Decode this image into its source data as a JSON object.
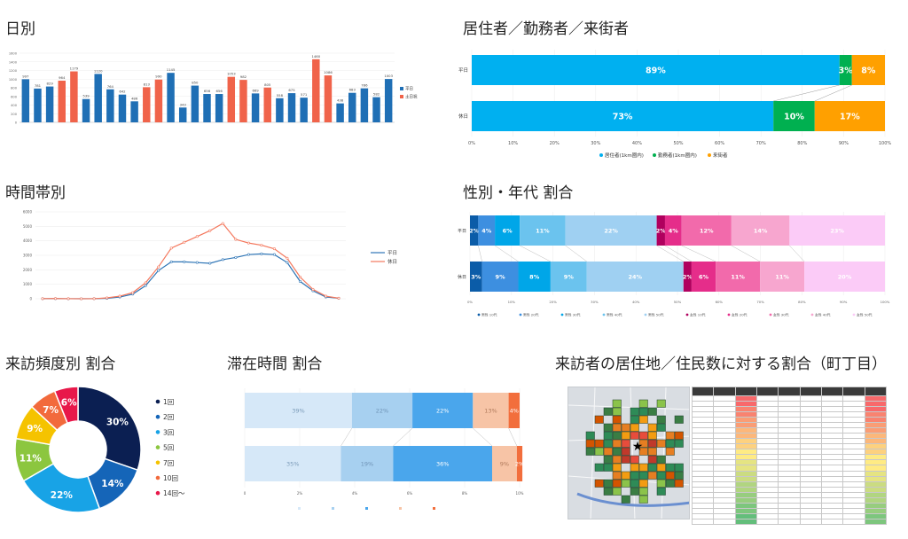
{
  "titles": {
    "daily": "日別",
    "resident": "居住者／勤務者／来街者",
    "hourly": "時間帯別",
    "gender_age": "性別・年代 割合",
    "frequency": "来訪頻度別 割合",
    "stay": "滞在時間 割合",
    "residence": "来訪者の居住地／住民数に対する割合（町丁目）"
  },
  "colors": {
    "weekday": "#1f6fb5",
    "holiday": "#f0634a",
    "resident": "#00b0f0",
    "worker": "#00b050",
    "visitor": "#ffa000",
    "hourly_weekday": "#2e75b6",
    "hourly_holiday": "#f4775c"
  },
  "chart_data": [
    {
      "id": "daily",
      "type": "bar",
      "ylim": [
        0,
        1600
      ],
      "y_ticks": [
        "0",
        "200",
        "400",
        "600",
        "800",
        "1000",
        "1200",
        "1400",
        "1600"
      ],
      "series_names": [
        "平日",
        "土日祝"
      ],
      "values": [
        997,
        781,
        829,
        964,
        1179,
        539,
        1120,
        764,
        642,
        486,
        813,
        990,
        1145,
        343,
        850,
        656,
        656,
        1053,
        982,
        669,
        805,
        558,
        675,
        571,
        1460,
        1086,
        438,
        683,
        786,
        582,
        1003
      ],
      "holiday": [
        false,
        false,
        false,
        true,
        true,
        false,
        false,
        false,
        false,
        false,
        true,
        true,
        false,
        false,
        false,
        false,
        false,
        true,
        true,
        false,
        true,
        false,
        false,
        false,
        true,
        true,
        false,
        false,
        false,
        false,
        false
      ]
    },
    {
      "id": "resident",
      "type": "bar",
      "orientation": "horizontal-stacked",
      "categories": [
        "平日",
        "休日"
      ],
      "series": [
        {
          "name": "居住者(1km圏内)",
          "values": [
            89,
            73
          ],
          "labels": [
            "89%",
            "73%"
          ]
        },
        {
          "name": "勤務者(1km圏内)",
          "values": [
            3,
            10
          ],
          "labels": [
            "3%",
            "10%"
          ]
        },
        {
          "name": "来街者",
          "values": [
            8,
            17
          ],
          "labels": [
            "8%",
            "17%"
          ]
        }
      ],
      "x_ticks": [
        "0%",
        "10%",
        "20%",
        "30%",
        "40%",
        "50%",
        "60%",
        "70%",
        "80%",
        "90%",
        "100%"
      ]
    },
    {
      "id": "hourly",
      "type": "line",
      "ylim": [
        0,
        6000
      ],
      "y_ticks": [
        "0",
        "1000",
        "2000",
        "3000",
        "4000",
        "5000",
        "6000"
      ],
      "series": [
        {
          "name": "平日",
          "values": [
            5,
            10,
            3,
            2,
            5,
            30,
            120,
            320,
            900,
            1950,
            2550,
            2550,
            2500,
            2450,
            2700,
            2850,
            3050,
            3100,
            3050,
            2500,
            1200,
            550,
            120,
            40
          ]
        },
        {
          "name": "休日",
          "values": [
            10,
            15,
            5,
            3,
            5,
            60,
            180,
            420,
            1100,
            2200,
            3500,
            3900,
            4300,
            4700,
            5200,
            4100,
            3850,
            3700,
            3450,
            2800,
            1500,
            650,
            180,
            40
          ]
        }
      ]
    },
    {
      "id": "gender_age",
      "type": "bar",
      "orientation": "horizontal-stacked",
      "categories": [
        "平日",
        "休日"
      ],
      "series": [
        {
          "name": "男性 10代",
          "values": [
            2,
            3
          ]
        },
        {
          "name": "男性 20代",
          "values": [
            4,
            9
          ]
        },
        {
          "name": "男性 30代",
          "values": [
            6,
            8
          ]
        },
        {
          "name": "男性 40代",
          "values": [
            11,
            9
          ]
        },
        {
          "name": "男性 50代",
          "values": [
            22,
            24
          ]
        },
        {
          "name": "女性 10代",
          "values": [
            2,
            2
          ]
        },
        {
          "name": "女性 20代",
          "values": [
            4,
            6
          ]
        },
        {
          "name": "女性 30代",
          "values": [
            12,
            11
          ]
        },
        {
          "name": "女性 40代",
          "values": [
            14,
            11
          ]
        },
        {
          "name": "女性 50代",
          "values": [
            23,
            20
          ]
        }
      ],
      "x_ticks": [
        "0%",
        "10%",
        "20%",
        "30%",
        "40%",
        "50%",
        "60%",
        "70%",
        "80%",
        "90%",
        "100%"
      ]
    },
    {
      "id": "frequency",
      "type": "pie",
      "series": [
        {
          "name": "1回",
          "value": 30,
          "label": "30%"
        },
        {
          "name": "2回",
          "value": 14,
          "label": "14%"
        },
        {
          "name": "3回",
          "value": 22,
          "label": "22%"
        },
        {
          "name": "5回",
          "value": 11,
          "label": "11%"
        },
        {
          "name": "7回",
          "value": 9,
          "label": "9%"
        },
        {
          "name": "10回",
          "value": 7,
          "label": "7%"
        },
        {
          "name": "14回～",
          "value": 6,
          "label": "6%"
        }
      ]
    },
    {
      "id": "stay",
      "type": "bar",
      "orientation": "horizontal-stacked",
      "series": [
        {
          "values": [
            39,
            35
          ],
          "labels": [
            "39%",
            "35%"
          ]
        },
        {
          "values": [
            22,
            19
          ],
          "labels": [
            "22%",
            "19%"
          ]
        },
        {
          "values": [
            22,
            36
          ],
          "labels": [
            "22%",
            "36%"
          ]
        },
        {
          "values": [
            13,
            9
          ],
          "labels": [
            "13%",
            "9%"
          ]
        },
        {
          "values": [
            4,
            2
          ],
          "labels": [
            "4%",
            "2%"
          ]
        }
      ],
      "x_ticks": [
        "0",
        "2%",
        "4%",
        "6%",
        "8%",
        "10%"
      ]
    }
  ]
}
